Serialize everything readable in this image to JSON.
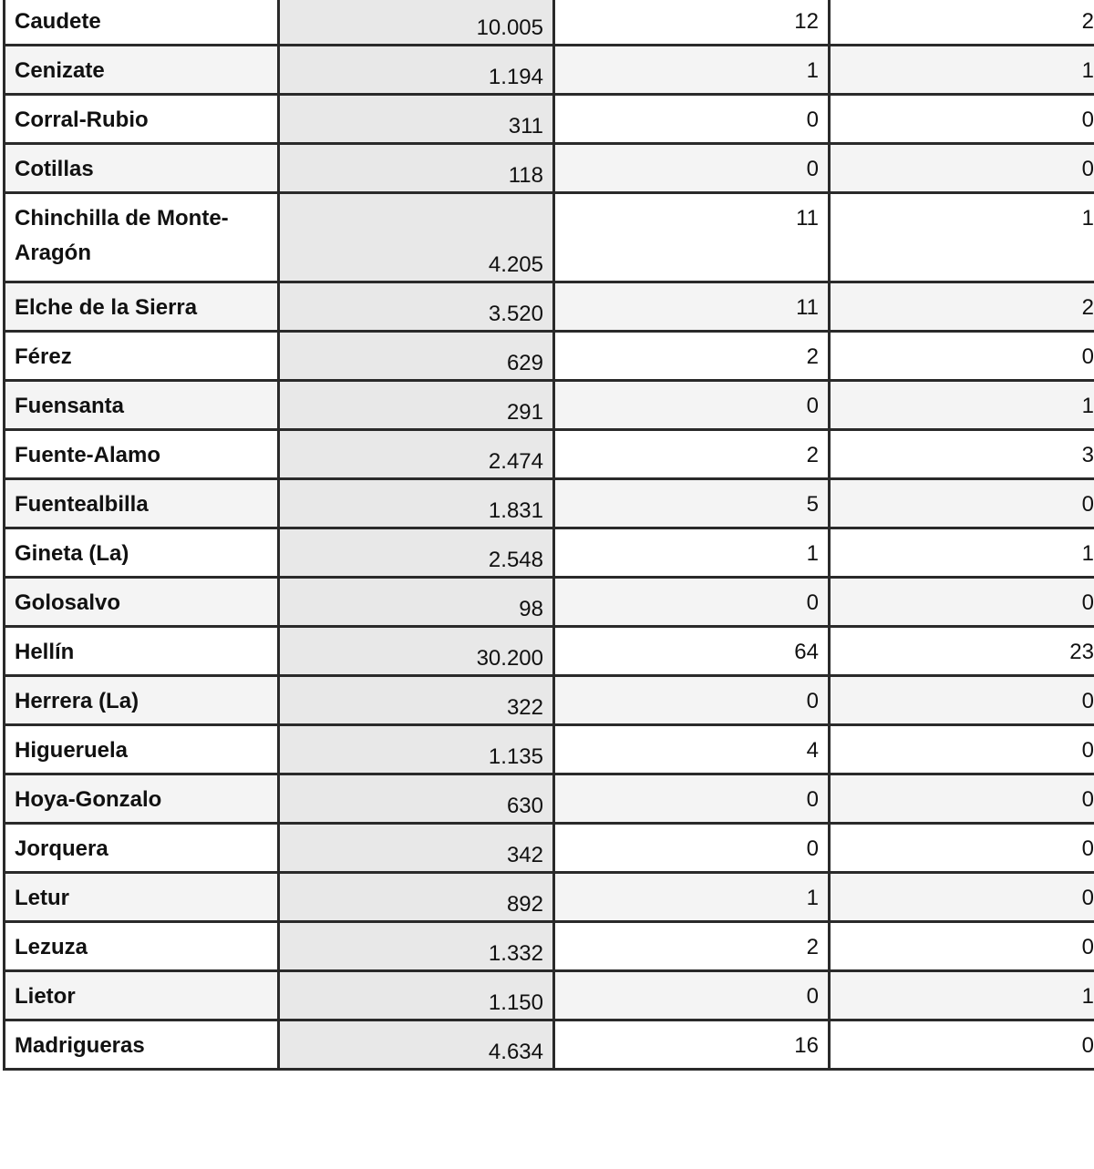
{
  "rows": [
    {
      "name": "Caudete",
      "population": "10.005",
      "col3": "12",
      "col4": "2"
    },
    {
      "name": "Cenizate",
      "population": "1.194",
      "col3": "1",
      "col4": "1"
    },
    {
      "name": "Corral-Rubio",
      "population": "311",
      "col3": "0",
      "col4": "0"
    },
    {
      "name": "Cotillas",
      "population": "118",
      "col3": "0",
      "col4": "0"
    },
    {
      "name": "Chinchilla de Monte-Aragón",
      "population": "4.205",
      "col3": "11",
      "col4": "1"
    },
    {
      "name": "Elche de la Sierra",
      "population": "3.520",
      "col3": "11",
      "col4": "2"
    },
    {
      "name": "Férez",
      "population": "629",
      "col3": "2",
      "col4": "0"
    },
    {
      "name": "Fuensanta",
      "population": "291",
      "col3": "0",
      "col4": "1"
    },
    {
      "name": "Fuente-Alamo",
      "population": "2.474",
      "col3": "2",
      "col4": "3"
    },
    {
      "name": "Fuentealbilla",
      "population": "1.831",
      "col3": "5",
      "col4": "0"
    },
    {
      "name": "Gineta (La)",
      "population": "2.548",
      "col3": "1",
      "col4": "1"
    },
    {
      "name": "Golosalvo",
      "population": "98",
      "col3": "0",
      "col4": "0"
    },
    {
      "name": "Hellín",
      "population": "30.200",
      "col3": "64",
      "col4": "23"
    },
    {
      "name": "Herrera (La)",
      "population": "322",
      "col3": "0",
      "col4": "0"
    },
    {
      "name": "Higueruela",
      "population": "1.135",
      "col3": "4",
      "col4": "0"
    },
    {
      "name": "Hoya-Gonzalo",
      "population": "630",
      "col3": "0",
      "col4": "0"
    },
    {
      "name": "Jorquera",
      "population": "342",
      "col3": "0",
      "col4": "0"
    },
    {
      "name": "Letur",
      "population": "892",
      "col3": "1",
      "col4": "0"
    },
    {
      "name": "Lezuza",
      "population": "1.332",
      "col3": "2",
      "col4": "0"
    },
    {
      "name": "Lietor",
      "population": "1.150",
      "col3": "0",
      "col4": "1"
    },
    {
      "name": "Madrigueras",
      "population": "4.634",
      "col3": "16",
      "col4": "0"
    }
  ]
}
